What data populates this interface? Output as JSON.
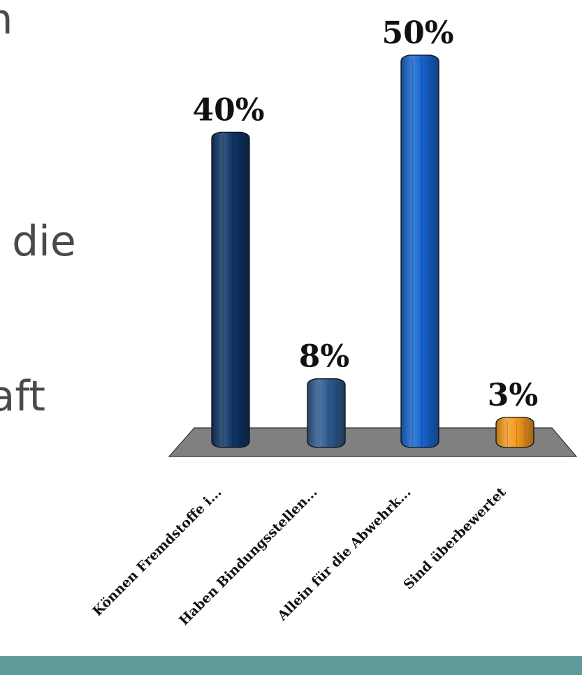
{
  "slide": {
    "line1": "m",
    "line2": "n die",
    "line3": "raft"
  },
  "chart_data": {
    "type": "bar",
    "categories": [
      "Können Fremdstoffe i...",
      "Haben Bindungsstellen...",
      "Allein für die Abwehrk...",
      "Sind überbewertet"
    ],
    "values": [
      40,
      8,
      50,
      3
    ],
    "data_labels": [
      "40%",
      "8%",
      "50%",
      "3%"
    ],
    "colors": [
      "#0e3566",
      "#2f5a91",
      "#1565cf",
      "#f59a1e"
    ],
    "floor_color": "#808080",
    "ylim": [
      0,
      50
    ],
    "grid": false,
    "legend": false,
    "title": "",
    "xlabel": "",
    "ylabel": ""
  }
}
